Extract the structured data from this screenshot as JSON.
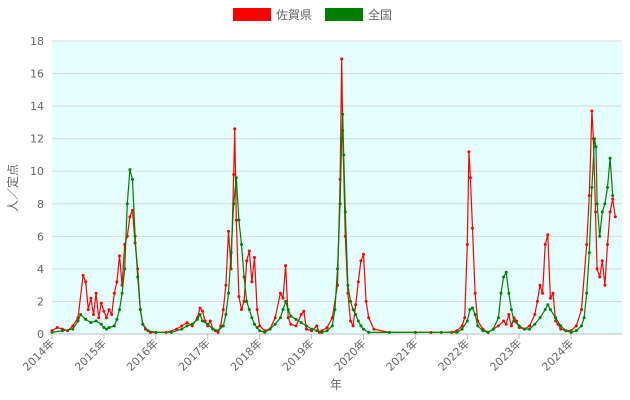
{
  "chart_data": {
    "type": "line",
    "xlabel": "年",
    "ylabel": "人／定点",
    "ylim": [
      0,
      18
    ],
    "yticks": [
      0,
      2,
      4,
      6,
      8,
      10,
      12,
      14,
      16,
      18
    ],
    "xlim": [
      2014,
      2024.98
    ],
    "xticks": [
      {
        "value": 2014,
        "label": "2014年"
      },
      {
        "value": 2015,
        "label": "2015年"
      },
      {
        "value": 2016,
        "label": "2016年"
      },
      {
        "value": 2017,
        "label": "2017年"
      },
      {
        "value": 2018,
        "label": "2018年"
      },
      {
        "value": 2019,
        "label": "2019年"
      },
      {
        "value": 2020,
        "label": "2020年"
      },
      {
        "value": 2021,
        "label": "2021年"
      },
      {
        "value": 2022,
        "label": "2022年"
      },
      {
        "value": 2023,
        "label": "2023年"
      },
      {
        "value": 2024,
        "label": "2024年"
      }
    ],
    "grid": true,
    "plot_background": "#e5ffff",
    "legend_position": "top-center",
    "series": [
      {
        "name": "佐賀県",
        "color": "#ff0000",
        "points": [
          [
            2014.0,
            0.2
          ],
          [
            2014.1,
            0.4
          ],
          [
            2014.2,
            0.3
          ],
          [
            2014.3,
            0.2
          ],
          [
            2014.4,
            0.5
          ],
          [
            2014.5,
            1.0
          ],
          [
            2014.6,
            3.6
          ],
          [
            2014.65,
            3.2
          ],
          [
            2014.7,
            1.5
          ],
          [
            2014.75,
            2.2
          ],
          [
            2014.8,
            1.2
          ],
          [
            2014.85,
            2.5
          ],
          [
            2014.9,
            1.0
          ],
          [
            2014.95,
            1.9
          ],
          [
            2015.0,
            1.4
          ],
          [
            2015.05,
            1.0
          ],
          [
            2015.1,
            1.5
          ],
          [
            2015.15,
            1.2
          ],
          [
            2015.2,
            2.5
          ],
          [
            2015.25,
            3.2
          ],
          [
            2015.3,
            4.8
          ],
          [
            2015.35,
            3.0
          ],
          [
            2015.4,
            5.5
          ],
          [
            2015.45,
            6.0
          ],
          [
            2015.5,
            7.2
          ],
          [
            2015.55,
            7.6
          ],
          [
            2015.6,
            5.6
          ],
          [
            2015.65,
            4.0
          ],
          [
            2015.7,
            1.5
          ],
          [
            2015.75,
            0.6
          ],
          [
            2015.8,
            0.3
          ],
          [
            2015.9,
            0.1
          ],
          [
            2016.0,
            0.1
          ],
          [
            2016.2,
            0.1
          ],
          [
            2016.4,
            0.3
          ],
          [
            2016.5,
            0.5
          ],
          [
            2016.6,
            0.7
          ],
          [
            2016.7,
            0.5
          ],
          [
            2016.8,
            1.0
          ],
          [
            2016.85,
            1.6
          ],
          [
            2016.9,
            1.4
          ],
          [
            2016.95,
            0.8
          ],
          [
            2017.0,
            0.5
          ],
          [
            2017.05,
            0.8
          ],
          [
            2017.1,
            0.3
          ],
          [
            2017.15,
            0.2
          ],
          [
            2017.2,
            0.1
          ],
          [
            2017.25,
            0.5
          ],
          [
            2017.3,
            1.5
          ],
          [
            2017.35,
            3.0
          ],
          [
            2017.4,
            6.3
          ],
          [
            2017.45,
            4.0
          ],
          [
            2017.5,
            9.8
          ],
          [
            2017.52,
            12.6
          ],
          [
            2017.55,
            7.0
          ],
          [
            2017.6,
            2.3
          ],
          [
            2017.65,
            1.5
          ],
          [
            2017.7,
            2.0
          ],
          [
            2017.75,
            4.5
          ],
          [
            2017.8,
            5.1
          ],
          [
            2017.85,
            3.2
          ],
          [
            2017.9,
            4.7
          ],
          [
            2017.95,
            1.5
          ],
          [
            2018.0,
            0.5
          ],
          [
            2018.1,
            0.2
          ],
          [
            2018.2,
            0.3
          ],
          [
            2018.3,
            1.0
          ],
          [
            2018.4,
            2.5
          ],
          [
            2018.45,
            2.2
          ],
          [
            2018.5,
            4.2
          ],
          [
            2018.55,
            1.0
          ],
          [
            2018.6,
            0.6
          ],
          [
            2018.7,
            0.5
          ],
          [
            2018.8,
            1.2
          ],
          [
            2018.85,
            1.4
          ],
          [
            2018.9,
            0.3
          ],
          [
            2019.0,
            0.2
          ],
          [
            2019.1,
            0.5
          ],
          [
            2019.15,
            0.1
          ],
          [
            2019.2,
            0.2
          ],
          [
            2019.3,
            0.4
          ],
          [
            2019.4,
            1.0
          ],
          [
            2019.5,
            3.0
          ],
          [
            2019.55,
            9.5
          ],
          [
            2019.58,
            16.9
          ],
          [
            2019.6,
            12.5
          ],
          [
            2019.65,
            6.0
          ],
          [
            2019.7,
            2.5
          ],
          [
            2019.75,
            0.8
          ],
          [
            2019.8,
            0.5
          ],
          [
            2019.85,
            1.8
          ],
          [
            2019.9,
            3.2
          ],
          [
            2019.95,
            4.5
          ],
          [
            2020.0,
            4.9
          ],
          [
            2020.05,
            2.0
          ],
          [
            2020.1,
            1.0
          ],
          [
            2020.2,
            0.3
          ],
          [
            2020.5,
            0.1
          ],
          [
            2021.0,
            0.1
          ],
          [
            2021.3,
            0.1
          ],
          [
            2021.7,
            0.1
          ],
          [
            2021.8,
            0.2
          ],
          [
            2021.9,
            0.5
          ],
          [
            2021.95,
            1.0
          ],
          [
            2022.0,
            5.5
          ],
          [
            2022.03,
            11.2
          ],
          [
            2022.06,
            9.6
          ],
          [
            2022.1,
            6.5
          ],
          [
            2022.15,
            2.5
          ],
          [
            2022.2,
            0.8
          ],
          [
            2022.3,
            0.3
          ],
          [
            2022.4,
            0.1
          ],
          [
            2022.5,
            0.3
          ],
          [
            2022.6,
            0.5
          ],
          [
            2022.7,
            0.8
          ],
          [
            2022.75,
            0.6
          ],
          [
            2022.8,
            1.2
          ],
          [
            2022.85,
            0.5
          ],
          [
            2022.9,
            1.0
          ],
          [
            2022.95,
            0.8
          ],
          [
            2023.0,
            0.4
          ],
          [
            2023.1,
            0.3
          ],
          [
            2023.2,
            0.5
          ],
          [
            2023.3,
            1.2
          ],
          [
            2023.35,
            2.0
          ],
          [
            2023.4,
            3.0
          ],
          [
            2023.45,
            2.5
          ],
          [
            2023.5,
            5.5
          ],
          [
            2023.55,
            6.1
          ],
          [
            2023.6,
            2.2
          ],
          [
            2023.65,
            2.5
          ],
          [
            2023.7,
            0.8
          ],
          [
            2023.75,
            0.6
          ],
          [
            2023.8,
            0.3
          ],
          [
            2023.9,
            0.2
          ],
          [
            2024.0,
            0.2
          ],
          [
            2024.1,
            0.5
          ],
          [
            2024.2,
            1.5
          ],
          [
            2024.3,
            5.5
          ],
          [
            2024.35,
            8.5
          ],
          [
            2024.4,
            13.7
          ],
          [
            2024.43,
            12.0
          ],
          [
            2024.47,
            7.5
          ],
          [
            2024.5,
            4.0
          ],
          [
            2024.55,
            3.5
          ],
          [
            2024.6,
            4.5
          ],
          [
            2024.65,
            3.0
          ],
          [
            2024.7,
            5.5
          ],
          [
            2024.75,
            7.5
          ],
          [
            2024.8,
            8.3
          ],
          [
            2024.85,
            7.2
          ]
        ]
      },
      {
        "name": "全国",
        "color": "#008000",
        "points": [
          [
            2014.0,
            0.1
          ],
          [
            2014.2,
            0.2
          ],
          [
            2014.4,
            0.3
          ],
          [
            2014.5,
            0.8
          ],
          [
            2014.55,
            1.2
          ],
          [
            2014.65,
            0.9
          ],
          [
            2014.75,
            0.7
          ],
          [
            2014.85,
            0.8
          ],
          [
            2014.95,
            0.6
          ],
          [
            2015.0,
            0.4
          ],
          [
            2015.05,
            0.3
          ],
          [
            2015.1,
            0.4
          ],
          [
            2015.2,
            0.5
          ],
          [
            2015.25,
            0.9
          ],
          [
            2015.3,
            1.5
          ],
          [
            2015.35,
            2.5
          ],
          [
            2015.4,
            4.0
          ],
          [
            2015.45,
            8.0
          ],
          [
            2015.5,
            10.1
          ],
          [
            2015.55,
            9.5
          ],
          [
            2015.6,
            6.0
          ],
          [
            2015.65,
            3.5
          ],
          [
            2015.7,
            1.5
          ],
          [
            2015.75,
            0.6
          ],
          [
            2015.85,
            0.2
          ],
          [
            2016.0,
            0.1
          ],
          [
            2016.3,
            0.1
          ],
          [
            2016.5,
            0.3
          ],
          [
            2016.6,
            0.5
          ],
          [
            2016.7,
            0.6
          ],
          [
            2016.8,
            0.9
          ],
          [
            2016.85,
            1.2
          ],
          [
            2016.9,
            0.8
          ],
          [
            2017.0,
            0.6
          ],
          [
            2017.1,
            0.3
          ],
          [
            2017.2,
            0.2
          ],
          [
            2017.3,
            0.5
          ],
          [
            2017.35,
            1.2
          ],
          [
            2017.4,
            2.5
          ],
          [
            2017.45,
            5.0
          ],
          [
            2017.5,
            8.0
          ],
          [
            2017.55,
            9.6
          ],
          [
            2017.6,
            7.0
          ],
          [
            2017.65,
            5.5
          ],
          [
            2017.7,
            3.5
          ],
          [
            2017.75,
            2.0
          ],
          [
            2017.8,
            1.5
          ],
          [
            2017.85,
            1.0
          ],
          [
            2017.9,
            0.6
          ],
          [
            2017.95,
            0.4
          ],
          [
            2018.0,
            0.2
          ],
          [
            2018.1,
            0.1
          ],
          [
            2018.2,
            0.3
          ],
          [
            2018.3,
            0.6
          ],
          [
            2018.4,
            1.0
          ],
          [
            2018.45,
            1.5
          ],
          [
            2018.5,
            2.0
          ],
          [
            2018.55,
            1.5
          ],
          [
            2018.6,
            1.1
          ],
          [
            2018.7,
            0.9
          ],
          [
            2018.8,
            0.7
          ],
          [
            2018.9,
            0.5
          ],
          [
            2019.0,
            0.3
          ],
          [
            2019.1,
            0.2
          ],
          [
            2019.2,
            0.1
          ],
          [
            2019.3,
            0.2
          ],
          [
            2019.4,
            0.5
          ],
          [
            2019.45,
            1.5
          ],
          [
            2019.5,
            4.0
          ],
          [
            2019.55,
            8.0
          ],
          [
            2019.58,
            12.0
          ],
          [
            2019.6,
            13.5
          ],
          [
            2019.62,
            11.0
          ],
          [
            2019.65,
            7.5
          ],
          [
            2019.7,
            3.0
          ],
          [
            2019.75,
            2.0
          ],
          [
            2019.8,
            1.5
          ],
          [
            2019.85,
            1.2
          ],
          [
            2019.9,
            0.8
          ],
          [
            2019.95,
            0.5
          ],
          [
            2020.0,
            0.3
          ],
          [
            2020.1,
            0.1
          ],
          [
            2020.5,
            0.1
          ],
          [
            2021.0,
            0.1
          ],
          [
            2021.5,
            0.1
          ],
          [
            2021.8,
            0.1
          ],
          [
            2021.9,
            0.3
          ],
          [
            2022.0,
            0.8
          ],
          [
            2022.05,
            1.5
          ],
          [
            2022.1,
            1.6
          ],
          [
            2022.15,
            1.2
          ],
          [
            2022.2,
            0.5
          ],
          [
            2022.3,
            0.2
          ],
          [
            2022.4,
            0.1
          ],
          [
            2022.5,
            0.3
          ],
          [
            2022.6,
            1.0
          ],
          [
            2022.65,
            2.5
          ],
          [
            2022.7,
            3.5
          ],
          [
            2022.75,
            3.8
          ],
          [
            2022.8,
            2.5
          ],
          [
            2022.85,
            1.5
          ],
          [
            2022.9,
            0.8
          ],
          [
            2023.0,
            0.5
          ],
          [
            2023.1,
            0.3
          ],
          [
            2023.2,
            0.3
          ],
          [
            2023.3,
            0.6
          ],
          [
            2023.4,
            1.0
          ],
          [
            2023.5,
            1.5
          ],
          [
            2023.55,
            1.8
          ],
          [
            2023.6,
            1.5
          ],
          [
            2023.7,
            1.0
          ],
          [
            2023.8,
            0.5
          ],
          [
            2023.9,
            0.2
          ],
          [
            2024.0,
            0.1
          ],
          [
            2024.1,
            0.2
          ],
          [
            2024.2,
            0.5
          ],
          [
            2024.25,
            1.0
          ],
          [
            2024.3,
            2.5
          ],
          [
            2024.35,
            5.0
          ],
          [
            2024.4,
            9.0
          ],
          [
            2024.45,
            12.0
          ],
          [
            2024.48,
            11.5
          ],
          [
            2024.5,
            8.0
          ],
          [
            2024.55,
            6.0
          ],
          [
            2024.6,
            7.5
          ],
          [
            2024.65,
            8.0
          ],
          [
            2024.7,
            9.0
          ],
          [
            2024.75,
            10.8
          ],
          [
            2024.8,
            8.5
          ]
        ]
      }
    ]
  }
}
